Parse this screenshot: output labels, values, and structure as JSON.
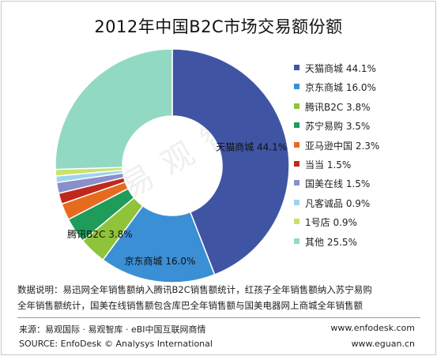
{
  "chart_data": {
    "type": "pie",
    "title": "2012年中国B2C市场交易额份额",
    "legend_position": "right",
    "slices": [
      {
        "name": "天猫商城",
        "value": 44.1,
        "label": "天猫商城 44.1%",
        "color": "#3f55a4"
      },
      {
        "name": "京东商城",
        "value": 16.0,
        "label": "京东商城 16.0%",
        "color": "#3b8fd4"
      },
      {
        "name": "腾讯B2C",
        "value": 3.8,
        "label": "腾讯B2C 3.8%",
        "color": "#8fc33a"
      },
      {
        "name": "苏宁易购",
        "value": 3.5,
        "label": "苏宁易购 3.5%",
        "color": "#1f9c5a"
      },
      {
        "name": "亚马逊中国",
        "value": 2.3,
        "label": "亚马逊中国 2.3%",
        "color": "#e66b1f"
      },
      {
        "name": "当当",
        "value": 1.5,
        "label": "当当 1.5%",
        "color": "#c0281c"
      },
      {
        "name": "国美在线",
        "value": 1.5,
        "label": "国美在线 1.5%",
        "color": "#8a8fc9"
      },
      {
        "name": "凡客诚品",
        "value": 0.9,
        "label": "凡客诚品 0.9%",
        "color": "#9fd3f0"
      },
      {
        "name": "1号店",
        "value": 0.9,
        "label": "1号店 0.9%",
        "color": "#c9e26a"
      },
      {
        "name": "其他",
        "value": 25.5,
        "label": "其他 25.5%",
        "color": "#92d9c4"
      }
    ],
    "inner_labels": {
      "tmall": "天猫商城 44.1%",
      "jd": "京东商城 16.0%",
      "tencent": "腾讯B2C 3.8%"
    }
  },
  "note": {
    "line1": "数据说明：易迅网全年销售额纳入腾讯B2C销售额统计，红孩子全年销售额纳入苏宁易购",
    "line2": "全年销售额统计，国美在线销售额包含库巴全年销售额与国美电器网上商城全年销售额"
  },
  "footer": {
    "source_cn": "来源：易观国际 · 易观智库 · eBI中国互联网商情",
    "source_en": "SOURCE: EnfoDesk © Analysys International",
    "site1": "www.enfodesk.com",
    "site2": "www.eguan.cn"
  },
  "watermark": "易观智库"
}
